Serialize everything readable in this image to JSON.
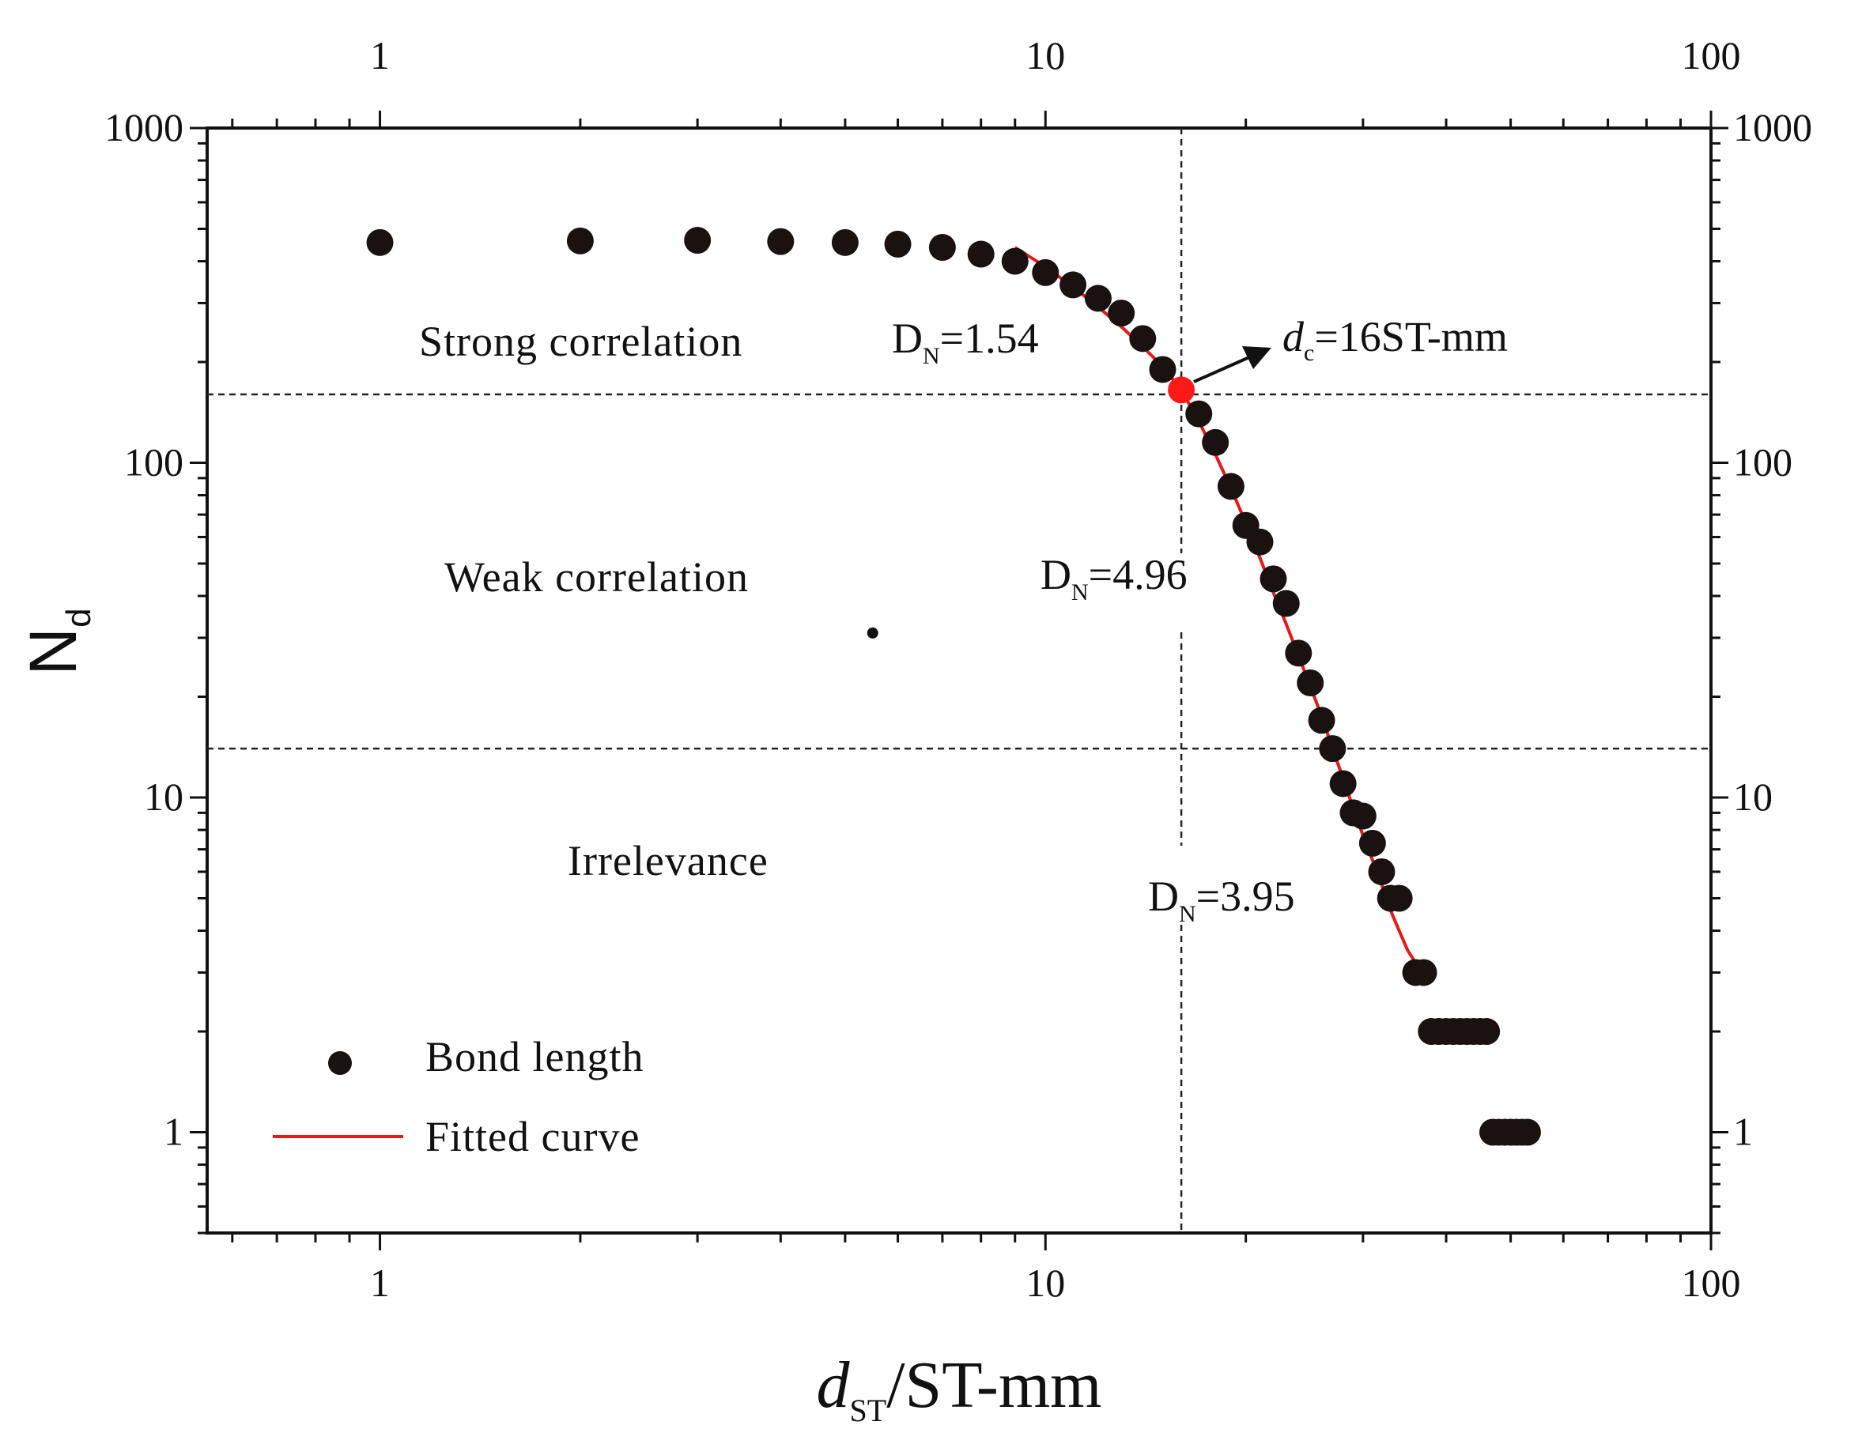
{
  "chart_data": {
    "type": "scatter",
    "x_scale": "log",
    "y_scale": "log",
    "xlim": [
      0.55,
      100
    ],
    "ylim": [
      0.5,
      1000
    ],
    "xlabel_main": "d",
    "xlabel_sub": "ST",
    "xlabel_rest": "/ST-mm",
    "ylabel_main": "N",
    "ylabel_sub": "d",
    "x_ticks": [
      1,
      10,
      100
    ],
    "x_tick_labels": [
      "1",
      "10",
      "100"
    ],
    "y_ticks": [
      1,
      10,
      100,
      1000
    ],
    "y_tick_labels": [
      "1",
      "10",
      "100",
      "1000"
    ],
    "series": [
      {
        "name": "Bond length",
        "kind": "scatter",
        "color": "#1a1111",
        "points": [
          [
            1,
            455
          ],
          [
            2,
            460
          ],
          [
            3,
            462
          ],
          [
            4,
            458
          ],
          [
            5,
            455
          ],
          [
            6,
            450
          ],
          [
            7,
            440
          ],
          [
            8,
            420
          ],
          [
            9,
            400
          ],
          [
            10,
            370
          ],
          [
            11,
            340
          ],
          [
            12,
            310
          ],
          [
            13,
            280
          ],
          [
            14,
            235
          ],
          [
            15,
            190
          ],
          [
            17,
            140
          ],
          [
            18,
            115
          ],
          [
            19,
            85
          ],
          [
            20,
            65
          ],
          [
            21,
            58
          ],
          [
            22,
            45
          ],
          [
            23,
            38
          ],
          [
            24,
            27
          ],
          [
            25,
            22
          ],
          [
            26,
            17
          ],
          [
            27,
            14
          ],
          [
            28,
            11
          ],
          [
            29,
            9
          ],
          [
            30,
            8.8
          ],
          [
            31,
            7.3
          ],
          [
            32,
            6
          ],
          [
            33,
            5
          ],
          [
            34,
            5
          ],
          [
            36,
            3
          ],
          [
            37,
            3
          ],
          [
            38,
            2
          ],
          [
            39,
            2
          ],
          [
            40,
            2
          ],
          [
            41,
            2
          ],
          [
            42,
            2
          ],
          [
            43,
            2
          ],
          [
            44,
            2
          ],
          [
            45,
            2
          ],
          [
            46,
            2
          ],
          [
            47,
            1
          ],
          [
            48,
            1
          ],
          [
            49,
            1
          ],
          [
            50,
            1
          ],
          [
            51,
            1
          ],
          [
            52,
            1
          ],
          [
            53,
            1
          ]
        ]
      },
      {
        "name": "Fitted curve",
        "kind": "line",
        "color": "#e81818",
        "points": [
          [
            9,
            440
          ],
          [
            10,
            385
          ],
          [
            11,
            335
          ],
          [
            12,
            292
          ],
          [
            13,
            255
          ],
          [
            14,
            222
          ],
          [
            15,
            194
          ],
          [
            16,
            165
          ],
          [
            17,
            133
          ],
          [
            18,
            106
          ],
          [
            19,
            84
          ],
          [
            20,
            66
          ],
          [
            21,
            52
          ],
          [
            22,
            41
          ],
          [
            23,
            33
          ],
          [
            24,
            26.5
          ],
          [
            25,
            21.5
          ],
          [
            26,
            17.5
          ],
          [
            27,
            14
          ],
          [
            28,
            11.4
          ],
          [
            29,
            9.3
          ],
          [
            30,
            7.7
          ],
          [
            31,
            6.5
          ],
          [
            32,
            5.5
          ],
          [
            33,
            4.6
          ],
          [
            34,
            4
          ],
          [
            35,
            3.5
          ],
          [
            36,
            3.2
          ],
          [
            37,
            3.0
          ]
        ]
      }
    ],
    "highlight_point": {
      "x": 16,
      "y": 165,
      "color": "#ff1a1a"
    },
    "small_marker": {
      "x": 5.5,
      "y": 31
    },
    "reference_lines": {
      "vertical_x": 16,
      "horizontal_y": [
        160,
        14
      ]
    },
    "region_labels": [
      "Strong correlation",
      "Weak correlation",
      "Irrelevance"
    ],
    "annotations": [
      {
        "main": "D",
        "sub": "N",
        "rest": "=1.54"
      },
      {
        "main": "D",
        "sub": "N",
        "rest": "=4.96"
      },
      {
        "main": "D",
        "sub": "N",
        "rest": "=3.95"
      }
    ],
    "critical_label": {
      "main": "d",
      "sub": "c",
      "rest": "=16ST-mm"
    },
    "legend": [
      "Bond length",
      "Fitted curve"
    ]
  }
}
